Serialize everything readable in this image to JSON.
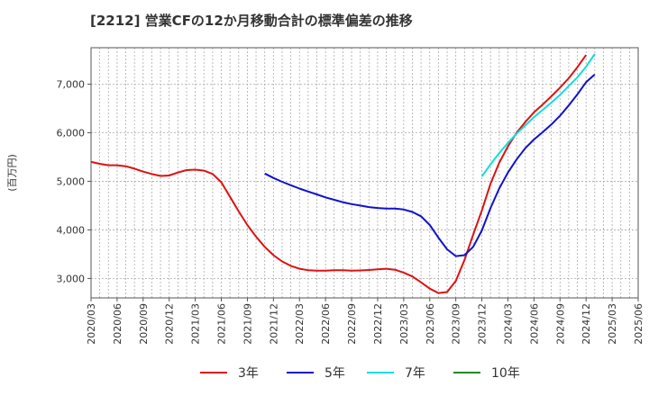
{
  "chart_data": {
    "type": "line",
    "title": "[2212]  営業CFの12か月移動合計の標準偏差の推移",
    "ylabel": "(百万円)",
    "xlabel": "",
    "ylim": [
      2600,
      7750
    ],
    "yticks": [
      3000,
      4000,
      5000,
      6000,
      7000
    ],
    "ytick_labels": [
      "3,000",
      "4,000",
      "5,000",
      "6,000",
      "7,000"
    ],
    "xlim": [
      "2020-03",
      "2025-06"
    ],
    "xticks": [
      "2020/03",
      "2020/06",
      "2020/09",
      "2020/12",
      "2021/03",
      "2021/06",
      "2021/09",
      "2021/12",
      "2022/03",
      "2022/06",
      "2022/09",
      "2022/12",
      "2023/03",
      "2023/06",
      "2023/09",
      "2023/12",
      "2024/03",
      "2024/06",
      "2024/09",
      "2024/12",
      "2025/03",
      "2025/06"
    ],
    "grid": true,
    "legend": "bottom",
    "series": [
      {
        "name": "3年",
        "color": "#dd1111",
        "points": [
          [
            "2020-03",
            5400
          ],
          [
            "2020-04",
            5360
          ],
          [
            "2020-05",
            5330
          ],
          [
            "2020-06",
            5330
          ],
          [
            "2020-07",
            5310
          ],
          [
            "2020-08",
            5260
          ],
          [
            "2020-09",
            5200
          ],
          [
            "2020-10",
            5150
          ],
          [
            "2020-11",
            5110
          ],
          [
            "2020-12",
            5120
          ],
          [
            "2021-01",
            5180
          ],
          [
            "2021-02",
            5230
          ],
          [
            "2021-03",
            5240
          ],
          [
            "2021-04",
            5220
          ],
          [
            "2021-05",
            5150
          ],
          [
            "2021-06",
            4980
          ],
          [
            "2021-07",
            4680
          ],
          [
            "2021-08",
            4380
          ],
          [
            "2021-09",
            4100
          ],
          [
            "2021-10",
            3860
          ],
          [
            "2021-11",
            3650
          ],
          [
            "2021-12",
            3480
          ],
          [
            "2022-01",
            3350
          ],
          [
            "2022-02",
            3260
          ],
          [
            "2022-03",
            3200
          ],
          [
            "2022-04",
            3170
          ],
          [
            "2022-05",
            3160
          ],
          [
            "2022-06",
            3160
          ],
          [
            "2022-07",
            3170
          ],
          [
            "2022-08",
            3170
          ],
          [
            "2022-09",
            3160
          ],
          [
            "2022-10",
            3165
          ],
          [
            "2022-11",
            3175
          ],
          [
            "2022-12",
            3190
          ],
          [
            "2023-01",
            3200
          ],
          [
            "2023-02",
            3180
          ],
          [
            "2023-03",
            3120
          ],
          [
            "2023-04",
            3040
          ],
          [
            "2023-05",
            2920
          ],
          [
            "2023-06",
            2790
          ],
          [
            "2023-07",
            2700
          ],
          [
            "2023-08",
            2720
          ],
          [
            "2023-09",
            2950
          ],
          [
            "2023-10",
            3380
          ],
          [
            "2023-11",
            3900
          ],
          [
            "2023-12",
            4400
          ],
          [
            "2024-01",
            4950
          ],
          [
            "2024-02",
            5380
          ],
          [
            "2024-03",
            5720
          ],
          [
            "2024-04",
            6000
          ],
          [
            "2024-05",
            6220
          ],
          [
            "2024-06",
            6420
          ],
          [
            "2024-07",
            6580
          ],
          [
            "2024-08",
            6750
          ],
          [
            "2024-09",
            6930
          ],
          [
            "2024-10",
            7120
          ],
          [
            "2024-11",
            7350
          ],
          [
            "2024-12",
            7600
          ]
        ]
      },
      {
        "name": "5年",
        "color": "#1111cc",
        "points": [
          [
            "2021-11",
            5160
          ],
          [
            "2021-12",
            5070
          ],
          [
            "2022-01",
            4990
          ],
          [
            "2022-02",
            4920
          ],
          [
            "2022-03",
            4850
          ],
          [
            "2022-04",
            4790
          ],
          [
            "2022-05",
            4730
          ],
          [
            "2022-06",
            4670
          ],
          [
            "2022-07",
            4620
          ],
          [
            "2022-08",
            4570
          ],
          [
            "2022-09",
            4530
          ],
          [
            "2022-10",
            4500
          ],
          [
            "2022-11",
            4470
          ],
          [
            "2022-12",
            4450
          ],
          [
            "2023-01",
            4440
          ],
          [
            "2023-02",
            4440
          ],
          [
            "2023-03",
            4420
          ],
          [
            "2023-04",
            4370
          ],
          [
            "2023-05",
            4280
          ],
          [
            "2023-06",
            4100
          ],
          [
            "2023-07",
            3840
          ],
          [
            "2023-08",
            3600
          ],
          [
            "2023-09",
            3460
          ],
          [
            "2023-10",
            3480
          ],
          [
            "2023-11",
            3650
          ],
          [
            "2023-12",
            3990
          ],
          [
            "2024-01",
            4450
          ],
          [
            "2024-02",
            4850
          ],
          [
            "2024-03",
            5180
          ],
          [
            "2024-04",
            5450
          ],
          [
            "2024-05",
            5680
          ],
          [
            "2024-06",
            5860
          ],
          [
            "2024-07",
            6010
          ],
          [
            "2024-08",
            6170
          ],
          [
            "2024-09",
            6350
          ],
          [
            "2024-10",
            6560
          ],
          [
            "2024-11",
            6790
          ],
          [
            "2024-12",
            7040
          ],
          [
            "2025-01",
            7200
          ]
        ]
      },
      {
        "name": "7年",
        "color": "#11dddd",
        "points": [
          [
            "2023-12",
            5100
          ],
          [
            "2024-01",
            5350
          ],
          [
            "2024-02",
            5580
          ],
          [
            "2024-03",
            5790
          ],
          [
            "2024-04",
            5980
          ],
          [
            "2024-05",
            6150
          ],
          [
            "2024-06",
            6320
          ],
          [
            "2024-07",
            6470
          ],
          [
            "2024-08",
            6620
          ],
          [
            "2024-09",
            6780
          ],
          [
            "2024-10",
            6960
          ],
          [
            "2024-11",
            7140
          ],
          [
            "2024-12",
            7360
          ],
          [
            "2025-01",
            7620
          ]
        ]
      },
      {
        "name": "10年",
        "color": "#228822",
        "points": []
      }
    ]
  }
}
